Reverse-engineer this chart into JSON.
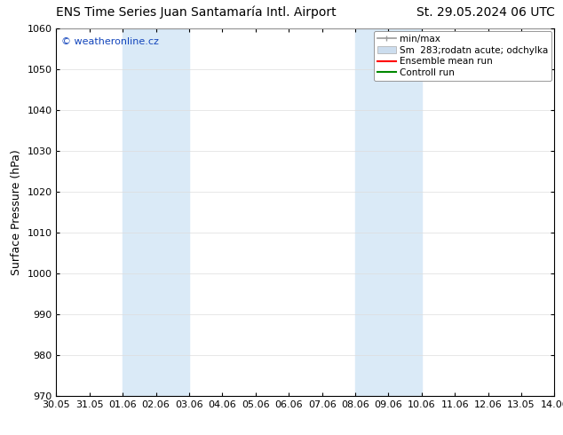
{
  "title_left": "ENS Time Series Juan Santamaría Intl. Airport",
  "title_right": "St. 29.05.2024 06 UTC",
  "ylabel": "Surface Pressure (hPa)",
  "ylim": [
    970,
    1060
  ],
  "yticks": [
    970,
    980,
    990,
    1000,
    1010,
    1020,
    1030,
    1040,
    1050,
    1060
  ],
  "x_start": 0,
  "x_end": 15,
  "xtick_labels": [
    "30.05",
    "31.05",
    "01.06",
    "02.06",
    "03.06",
    "04.06",
    "05.06",
    "06.06",
    "07.06",
    "08.06",
    "09.06",
    "10.06",
    "11.06",
    "12.06",
    "13.05",
    "14.06"
  ],
  "xtick_positions": [
    0,
    1,
    2,
    3,
    4,
    5,
    6,
    7,
    8,
    9,
    10,
    11,
    12,
    13,
    14,
    15
  ],
  "shaded_bands": [
    {
      "xmin": 2,
      "xmax": 4,
      "color": "#daeaf7"
    },
    {
      "xmin": 9,
      "xmax": 11,
      "color": "#daeaf7"
    }
  ],
  "watermark_text": "© weatheronline.cz",
  "watermark_color": "#1144bb",
  "legend_label_minmax": "min/max",
  "legend_label_sm": "Sm  283;rodatn acute; odchylka",
  "legend_label_ensemble": "Ensemble mean run",
  "legend_label_control": "Controll run",
  "legend_color_minmax": "#999999",
  "legend_color_sm": "#ccddee",
  "legend_color_ensemble": "#ff0000",
  "legend_color_control": "#008800",
  "bg_color": "#ffffff",
  "grid_color": "#dddddd",
  "spine_color": "#000000",
  "title_fontsize": 10,
  "axis_label_fontsize": 9,
  "tick_fontsize": 8,
  "legend_fontsize": 7.5
}
